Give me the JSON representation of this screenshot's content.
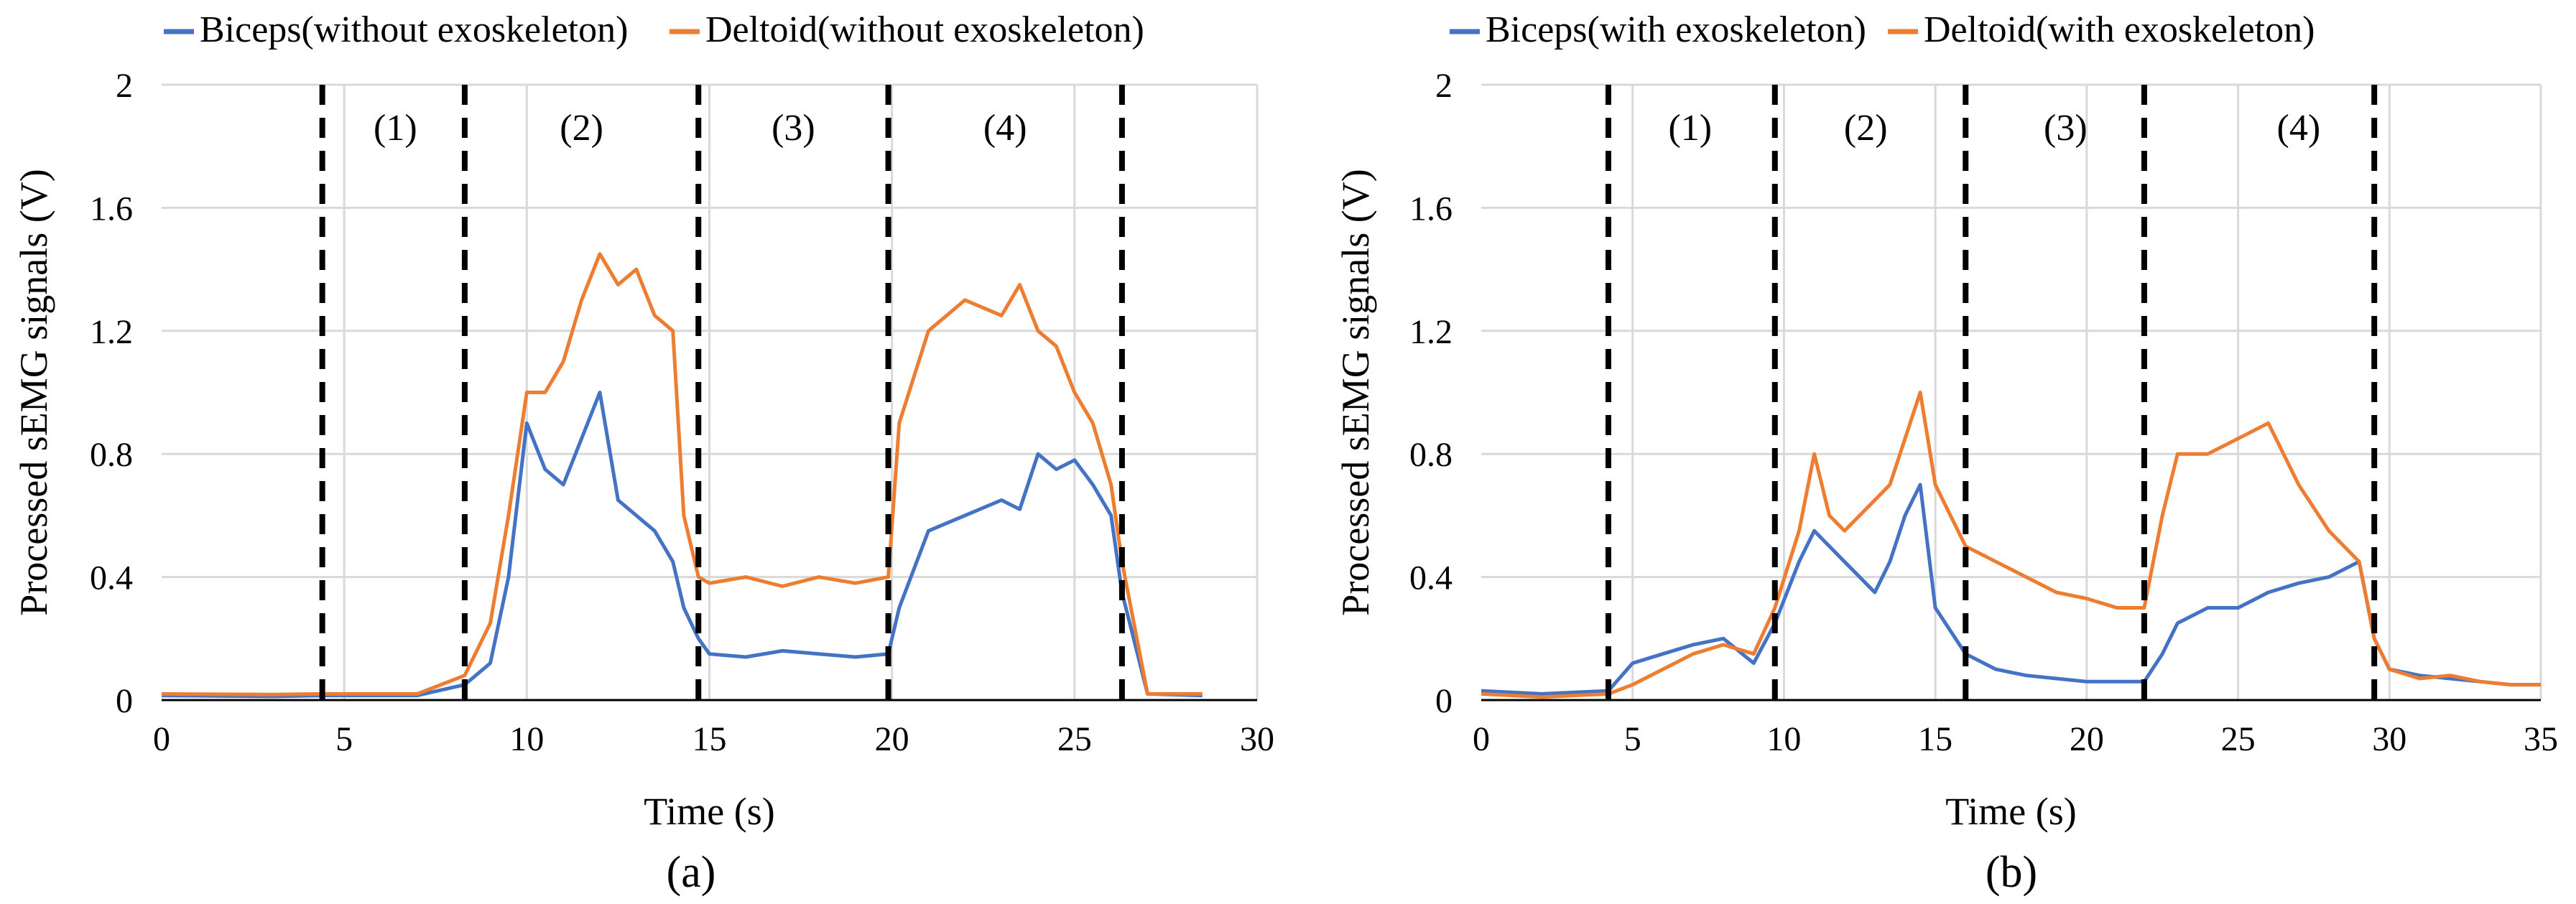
{
  "colors": {
    "biceps": "#4472C4",
    "deltoid": "#ED7D31",
    "grid": "#D9D9D9",
    "axis": "#000000",
    "phase_line": "#000000"
  },
  "chart_data": [
    {
      "type": "line",
      "panel_label": "(a)",
      "xlabel": "Time (s)",
      "ylabel": "Processed sEMG signals (V)",
      "xlim": [
        0,
        30
      ],
      "ylim": [
        0,
        2
      ],
      "xticks": [
        0,
        5,
        10,
        15,
        20,
        25,
        30
      ],
      "yticks": [
        0,
        0.4,
        0.8,
        1.2,
        1.6,
        2
      ],
      "ytick_labels": [
        "0",
        "0.4",
        "0.8",
        "1.2",
        "1.6",
        "2"
      ],
      "legend": [
        "Biceps(without exoskeleton)",
        "Deltoid(without exoskeleton)"
      ],
      "legend_position": "top",
      "phase_boundaries": [
        4.4,
        8.3,
        14.7,
        19.9,
        26.3
      ],
      "phase_labels": [
        {
          "text": "(1)",
          "x": 6.4
        },
        {
          "text": "(2)",
          "x": 11.5
        },
        {
          "text": "(3)",
          "x": 17.3
        },
        {
          "text": "(4)",
          "x": 23.1
        }
      ],
      "series": [
        {
          "name": "Biceps(without exoskeleton)",
          "key": "biceps",
          "x": [
            0,
            3,
            4.4,
            7,
            8.3,
            9,
            9.5,
            10,
            10.5,
            11,
            11.5,
            12,
            12.5,
            13,
            13.5,
            14,
            14.3,
            14.7,
            15,
            16,
            17,
            18,
            19,
            19.9,
            20.2,
            21,
            22,
            23,
            23.5,
            24,
            24.5,
            25,
            25.5,
            26,
            26.3,
            27,
            28.5
          ],
          "values": [
            0.015,
            0.012,
            0.015,
            0.015,
            0.05,
            0.12,
            0.4,
            0.9,
            0.75,
            0.7,
            0.85,
            1.0,
            0.65,
            0.6,
            0.55,
            0.45,
            0.3,
            0.2,
            0.15,
            0.14,
            0.16,
            0.15,
            0.14,
            0.15,
            0.3,
            0.55,
            0.6,
            0.65,
            0.62,
            0.8,
            0.75,
            0.78,
            0.7,
            0.6,
            0.35,
            0.02,
            0.015
          ]
        },
        {
          "name": "Deltoid(without exoskeleton)",
          "key": "deltoid",
          "x": [
            0,
            3,
            4.4,
            7,
            8.3,
            9,
            9.5,
            10,
            10.5,
            11,
            11.5,
            12,
            12.5,
            13,
            13.5,
            14,
            14.3,
            14.7,
            15,
            16,
            17,
            18,
            19,
            19.9,
            20.2,
            21,
            22,
            23,
            23.5,
            24,
            24.5,
            25,
            25.5,
            26,
            26.3,
            27,
            28.5
          ],
          "values": [
            0.02,
            0.018,
            0.02,
            0.02,
            0.08,
            0.25,
            0.6,
            1.0,
            1.0,
            1.1,
            1.3,
            1.45,
            1.35,
            1.4,
            1.25,
            1.2,
            0.6,
            0.4,
            0.38,
            0.4,
            0.37,
            0.4,
            0.38,
            0.4,
            0.9,
            1.2,
            1.3,
            1.25,
            1.35,
            1.2,
            1.15,
            1.0,
            0.9,
            0.7,
            0.45,
            0.02,
            0.02
          ]
        }
      ]
    },
    {
      "type": "line",
      "panel_label": "(b)",
      "xlabel": "Time (s)",
      "ylabel": "Processed sEMG signals (V)",
      "xlim": [
        0,
        35
      ],
      "ylim": [
        0,
        2
      ],
      "xticks": [
        0,
        5,
        10,
        15,
        20,
        25,
        30,
        35
      ],
      "yticks": [
        0,
        0.4,
        0.8,
        1.2,
        1.6,
        2
      ],
      "ytick_labels": [
        "0",
        "0.4",
        "0.8",
        "1.2",
        "1.6",
        "2"
      ],
      "legend": [
        "Biceps(with exoskeleton)",
        "Deltoid(with exoskeleton)"
      ],
      "legend_position": "top",
      "phase_boundaries": [
        4.2,
        9.7,
        16.0,
        21.9,
        29.5
      ],
      "phase_labels": [
        {
          "text": "(1)",
          "x": 6.9
        },
        {
          "text": "(2)",
          "x": 12.7
        },
        {
          "text": "(3)",
          "x": 19.3
        },
        {
          "text": "(4)",
          "x": 27.0
        }
      ],
      "series": [
        {
          "name": "Biceps(with exoskeleton)",
          "key": "biceps",
          "x": [
            0,
            2,
            4.2,
            5,
            6,
            7,
            8,
            9,
            9.7,
            10.5,
            11,
            11.5,
            12,
            12.5,
            13,
            13.5,
            14,
            14.5,
            15,
            16,
            17,
            18,
            19,
            20,
            21,
            21.9,
            22.5,
            23,
            24,
            25,
            26,
            27,
            28,
            29,
            29.5,
            30,
            31,
            32,
            33,
            34,
            35
          ],
          "values": [
            0.03,
            0.02,
            0.03,
            0.12,
            0.15,
            0.18,
            0.2,
            0.12,
            0.25,
            0.45,
            0.55,
            0.5,
            0.45,
            0.4,
            0.35,
            0.45,
            0.6,
            0.7,
            0.3,
            0.15,
            0.1,
            0.08,
            0.07,
            0.06,
            0.06,
            0.06,
            0.15,
            0.25,
            0.3,
            0.3,
            0.35,
            0.38,
            0.4,
            0.45,
            0.2,
            0.1,
            0.08,
            0.07,
            0.06,
            0.05,
            0.05
          ]
        },
        {
          "name": "Deltoid(with exoskeleton)",
          "key": "deltoid",
          "x": [
            0,
            2,
            4.2,
            5,
            6,
            7,
            8,
            9,
            9.7,
            10.5,
            11,
            11.5,
            12,
            12.5,
            13,
            13.5,
            14,
            14.5,
            15,
            16,
            17,
            18,
            19,
            20,
            21,
            21.9,
            22.5,
            23,
            24,
            25,
            26,
            27,
            28,
            29,
            29.5,
            30,
            31,
            32,
            33,
            34,
            35
          ],
          "values": [
            0.02,
            0.01,
            0.02,
            0.05,
            0.1,
            0.15,
            0.18,
            0.15,
            0.3,
            0.55,
            0.8,
            0.6,
            0.55,
            0.6,
            0.65,
            0.7,
            0.85,
            1.0,
            0.7,
            0.5,
            0.45,
            0.4,
            0.35,
            0.33,
            0.3,
            0.3,
            0.6,
            0.8,
            0.8,
            0.85,
            0.9,
            0.7,
            0.55,
            0.45,
            0.2,
            0.1,
            0.07,
            0.08,
            0.06,
            0.05,
            0.05
          ]
        }
      ]
    }
  ]
}
